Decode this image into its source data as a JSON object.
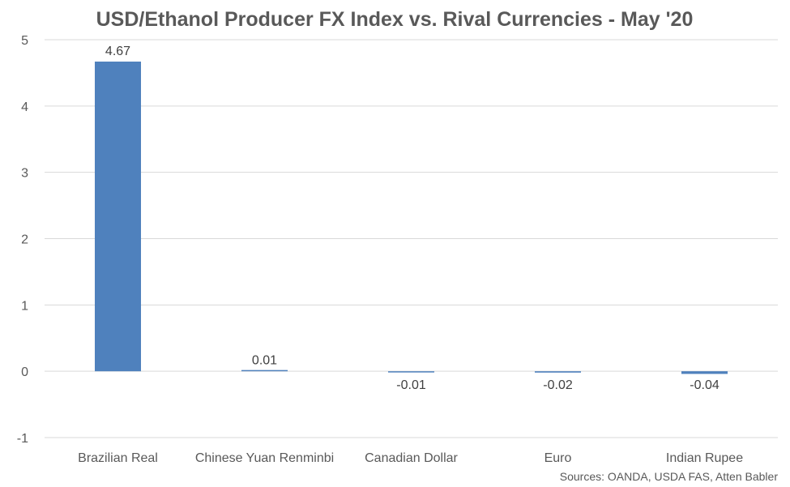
{
  "chart_data": {
    "type": "bar",
    "title": "USD/Ethanol Producer FX Index vs. Rival Currencies - May '20",
    "categories": [
      "Brazilian Real",
      "Chinese Yuan Renminbi",
      "Canadian Dollar",
      "Euro",
      "Indian Rupee"
    ],
    "values": [
      4.67,
      0.01,
      -0.01,
      -0.02,
      -0.04
    ],
    "data_labels": [
      "4.67",
      "0.01",
      "-0.01",
      "-0.02",
      "-0.04"
    ],
    "ylim": [
      -1,
      5
    ],
    "yticks": [
      -1,
      0,
      1,
      2,
      3,
      4,
      5
    ],
    "xlabel": "",
    "ylabel": "",
    "grid": true,
    "legend": "none",
    "bar_color": "#4f81bd"
  },
  "source_note": "Sources: OANDA, USDA FAS, Atten Babler"
}
